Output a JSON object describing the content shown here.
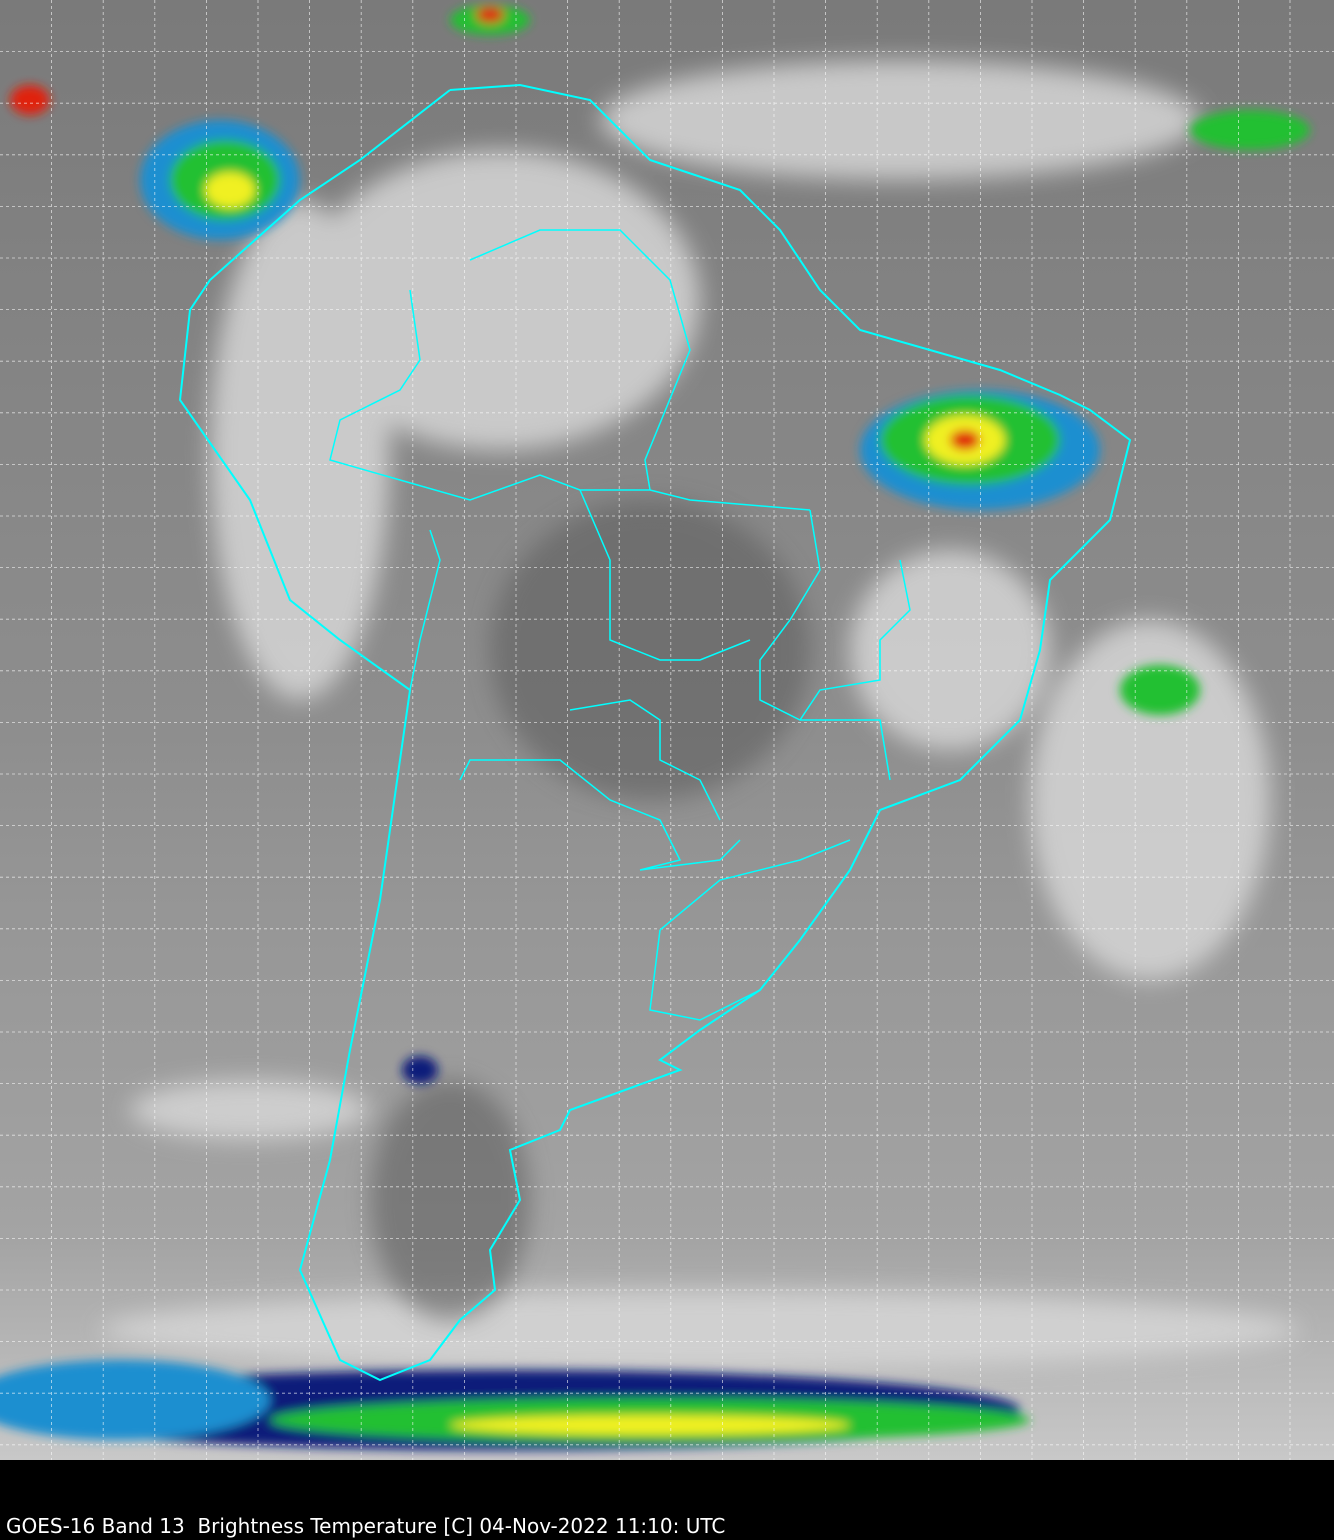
{
  "caption": "GOES-16 Band 13  Brightness Temperature [C] 04-Nov-2022 11:10: UTC",
  "colors": {
    "boundaries": "#00ffff",
    "grid": "#ffffff",
    "background": "#000000",
    "cloud_gray": "#d8d8d8",
    "ocean_gray": "#8a8a8a",
    "convection_scale": [
      "#0a1a7a",
      "#1a8fd0",
      "#22c030",
      "#f0f020",
      "#e02010",
      "#600000"
    ]
  }
}
